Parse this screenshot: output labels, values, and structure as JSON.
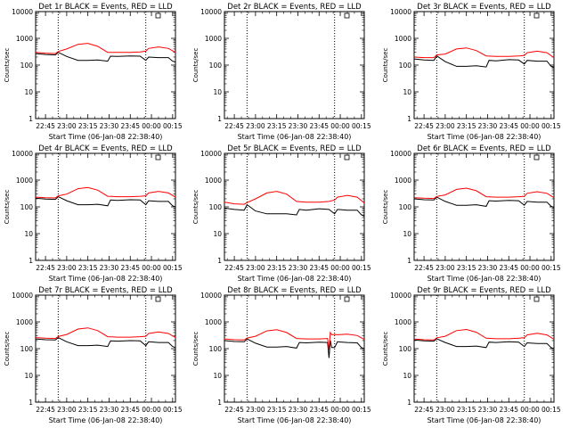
{
  "chart_data": [
    {
      "type": "line",
      "title": "Det 1r BLACK = Events, RED = LLD",
      "xlabel": "Start Time (06-Jan-08 22:38:40)",
      "ylabel": "Counts/sec",
      "yscale": "log",
      "ylim": [
        1,
        10000
      ],
      "xlim": [
        "22:38",
        "00:17"
      ],
      "x_ticks": [
        "22:45",
        "23:00",
        "23:15",
        "23:30",
        "23:45",
        "00:00",
        "00:15"
      ],
      "y_ticks": [
        "1",
        "10",
        "100",
        "1000",
        "10000"
      ],
      "vlines": [
        "22:54",
        "23:56"
      ],
      "legend": "top-right",
      "series": [
        {
          "name": "Events",
          "color": "#000000",
          "style": "stepped",
          "x": [
            "22:38",
            "22:45",
            "22:52",
            "22:54",
            "23:00",
            "23:08",
            "23:15",
            "23:22",
            "23:29",
            "23:31",
            "23:36",
            "23:45",
            "23:52",
            "23:56",
            "23:58",
            "00:05",
            "00:12",
            "00:15",
            "00:17"
          ],
          "y": [
            270,
            250,
            240,
            300,
            210,
            150,
            150,
            155,
            140,
            215,
            210,
            220,
            215,
            150,
            200,
            190,
            190,
            140,
            130
          ]
        },
        {
          "name": "LLD",
          "color": "#ff0000",
          "x": [
            "22:38",
            "22:45",
            "22:52",
            "22:54",
            "23:00",
            "23:08",
            "23:15",
            "23:22",
            "23:29",
            "23:36",
            "23:45",
            "23:52",
            "23:56",
            "23:58",
            "00:05",
            "00:12",
            "00:17"
          ],
          "y": [
            300,
            280,
            270,
            320,
            400,
            600,
            650,
            500,
            300,
            300,
            300,
            310,
            330,
            420,
            480,
            420,
            300
          ]
        }
      ]
    },
    {
      "type": "line",
      "title": "Det 2r BLACK = Events, RED = LLD",
      "xlabel": "Start Time (06-Jan-08 22:38:40)",
      "ylabel": "Counts/sec",
      "yscale": "log",
      "ylim": [
        1,
        10000
      ],
      "xlim": [
        "22:38",
        "00:17"
      ],
      "x_ticks": [
        "22:45",
        "23:00",
        "23:15",
        "23:30",
        "23:45",
        "00:00",
        "00:15"
      ],
      "y_ticks": [
        "1",
        "10",
        "100",
        "1000",
        "10000"
      ],
      "vlines": [
        "22:54",
        "23:56"
      ],
      "legend": "top-right",
      "series": [
        {
          "name": "Events",
          "color": "#000000",
          "x": [],
          "y": []
        },
        {
          "name": "LLD",
          "color": "#ff0000",
          "x": [],
          "y": []
        }
      ]
    },
    {
      "type": "line",
      "title": "Det 3r BLACK = Events, RED = LLD",
      "xlabel": "Start Time (06-Jan-08 22:38:40)",
      "ylabel": "Counts/sec",
      "yscale": "log",
      "ylim": [
        1,
        10000
      ],
      "xlim": [
        "22:38",
        "00:17"
      ],
      "x_ticks": [
        "22:45",
        "23:00",
        "23:15",
        "23:30",
        "23:45",
        "00:00",
        "00:15"
      ],
      "y_ticks": [
        "1",
        "10",
        "100",
        "1000",
        "10000"
      ],
      "vlines": [
        "22:54",
        "23:56"
      ],
      "legend": "top-right",
      "series": [
        {
          "name": "Events",
          "color": "#000000",
          "style": "stepped",
          "x": [
            "22:38",
            "22:45",
            "22:52",
            "22:54",
            "23:00",
            "23:08",
            "23:15",
            "23:22",
            "23:29",
            "23:31",
            "23:36",
            "23:45",
            "23:52",
            "23:56",
            "23:58",
            "00:05",
            "00:12",
            "00:15",
            "00:17"
          ],
          "y": [
            170,
            155,
            150,
            220,
            135,
            90,
            90,
            95,
            85,
            150,
            145,
            160,
            155,
            110,
            150,
            140,
            140,
            90,
            80
          ]
        },
        {
          "name": "LLD",
          "color": "#ff0000",
          "x": [
            "22:38",
            "22:45",
            "22:52",
            "22:54",
            "23:00",
            "23:08",
            "23:15",
            "23:22",
            "23:29",
            "23:36",
            "23:45",
            "23:52",
            "23:56",
            "23:58",
            "00:05",
            "00:12",
            "00:17"
          ],
          "y": [
            200,
            190,
            190,
            240,
            260,
            400,
            440,
            350,
            220,
            210,
            210,
            220,
            230,
            290,
            330,
            290,
            190
          ]
        }
      ]
    },
    {
      "type": "line",
      "title": "Det 4r BLACK = Events, RED = LLD",
      "xlabel": "Start Time (06-Jan-08 22:38:40)",
      "ylabel": "Counts/sec",
      "yscale": "log",
      "ylim": [
        1,
        10000
      ],
      "xlim": [
        "22:38",
        "00:17"
      ],
      "x_ticks": [
        "22:45",
        "23:00",
        "23:15",
        "23:30",
        "23:45",
        "00:00",
        "00:15"
      ],
      "y_ticks": [
        "1",
        "10",
        "100",
        "1000",
        "10000"
      ],
      "vlines": [
        "22:54",
        "23:56"
      ],
      "legend": "top-right",
      "series": [
        {
          "name": "Events",
          "color": "#000000",
          "style": "stepped",
          "x": [
            "22:38",
            "22:45",
            "22:52",
            "22:54",
            "23:00",
            "23:08",
            "23:15",
            "23:22",
            "23:29",
            "23:31",
            "23:36",
            "23:45",
            "23:52",
            "23:56",
            "23:58",
            "00:05",
            "00:12",
            "00:15",
            "00:17"
          ],
          "y": [
            210,
            195,
            190,
            240,
            170,
            120,
            120,
            125,
            110,
            180,
            175,
            185,
            180,
            120,
            170,
            160,
            160,
            110,
            100
          ]
        },
        {
          "name": "LLD",
          "color": "#ff0000",
          "x": [
            "22:38",
            "22:45",
            "22:52",
            "22:54",
            "23:00",
            "23:08",
            "23:15",
            "23:22",
            "23:29",
            "23:36",
            "23:45",
            "23:52",
            "23:56",
            "23:58",
            "00:05",
            "00:12",
            "00:17"
          ],
          "y": [
            230,
            220,
            215,
            260,
            300,
            480,
            530,
            420,
            250,
            240,
            240,
            250,
            260,
            330,
            380,
            330,
            230
          ]
        }
      ]
    },
    {
      "type": "line",
      "title": "Det 5r BLACK = Events, RED = LLD",
      "xlabel": "Start Time (06-Jan-08 22:38:40)",
      "ylabel": "Counts/sec",
      "yscale": "log",
      "ylim": [
        1,
        10000
      ],
      "xlim": [
        "22:38",
        "00:17"
      ],
      "x_ticks": [
        "22:45",
        "23:00",
        "23:15",
        "23:30",
        "23:45",
        "00:00",
        "00:15"
      ],
      "y_ticks": [
        "1",
        "10",
        "100",
        "1000",
        "10000"
      ],
      "vlines": [
        "22:54",
        "23:56"
      ],
      "legend": "top-right",
      "series": [
        {
          "name": "Events",
          "color": "#000000",
          "style": "stepped",
          "x": [
            "22:38",
            "22:45",
            "22:52",
            "22:54",
            "23:00",
            "23:08",
            "23:15",
            "23:22",
            "23:29",
            "23:31",
            "23:36",
            "23:45",
            "23:52",
            "23:56",
            "23:58",
            "00:05",
            "00:12",
            "00:15",
            "00:17"
          ],
          "y": [
            90,
            80,
            75,
            120,
            70,
            55,
            55,
            55,
            50,
            80,
            75,
            85,
            80,
            55,
            80,
            75,
            75,
            50,
            45
          ]
        },
        {
          "name": "LLD",
          "color": "#ff0000",
          "x": [
            "22:38",
            "22:45",
            "22:52",
            "22:54",
            "23:00",
            "23:08",
            "23:15",
            "23:22",
            "23:29",
            "23:36",
            "23:45",
            "23:52",
            "23:56",
            "23:58",
            "00:05",
            "00:12",
            "00:17"
          ],
          "y": [
            150,
            130,
            125,
            145,
            200,
            330,
            380,
            300,
            160,
            150,
            150,
            160,
            180,
            230,
            270,
            230,
            140
          ]
        }
      ]
    },
    {
      "type": "line",
      "title": "Det 6r BLACK = Events, RED = LLD",
      "xlabel": "Start Time (06-Jan-08 22:38:40)",
      "ylabel": "Counts/sec",
      "yscale": "log",
      "ylim": [
        1,
        10000
      ],
      "xlim": [
        "22:38",
        "00:17"
      ],
      "x_ticks": [
        "22:45",
        "23:00",
        "23:15",
        "23:30",
        "23:45",
        "00:00",
        "00:15"
      ],
      "y_ticks": [
        "1",
        "10",
        "100",
        "1000",
        "10000"
      ],
      "vlines": [
        "22:54",
        "23:56"
      ],
      "legend": "top-right",
      "series": [
        {
          "name": "Events",
          "color": "#000000",
          "style": "stepped",
          "x": [
            "22:38",
            "22:45",
            "22:52",
            "22:54",
            "23:00",
            "23:08",
            "23:15",
            "23:22",
            "23:29",
            "23:31",
            "23:36",
            "23:45",
            "23:52",
            "23:56",
            "23:58",
            "00:05",
            "00:12",
            "00:15",
            "00:17"
          ],
          "y": [
            200,
            185,
            180,
            230,
            160,
            115,
            115,
            120,
            105,
            170,
            165,
            175,
            170,
            115,
            160,
            150,
            150,
            105,
            95
          ]
        },
        {
          "name": "LLD",
          "color": "#ff0000",
          "x": [
            "22:38",
            "22:45",
            "22:52",
            "22:54",
            "23:00",
            "23:08",
            "23:15",
            "23:22",
            "23:29",
            "23:36",
            "23:45",
            "23:52",
            "23:56",
            "23:58",
            "00:05",
            "00:12",
            "00:17"
          ],
          "y": [
            220,
            210,
            205,
            245,
            280,
            450,
            500,
            400,
            240,
            230,
            230,
            240,
            250,
            320,
            370,
            320,
            220
          ]
        }
      ]
    },
    {
      "type": "line",
      "title": "Det 7r BLACK = Events, RED = LLD",
      "xlabel": "Start Time (06-Jan-08 22:38:40)",
      "ylabel": "Counts/sec",
      "yscale": "log",
      "ylim": [
        1,
        10000
      ],
      "xlim": [
        "22:38",
        "00:17"
      ],
      "x_ticks": [
        "22:45",
        "23:00",
        "23:15",
        "23:30",
        "23:45",
        "00:00",
        "00:15"
      ],
      "y_ticks": [
        "1",
        "10",
        "100",
        "1000",
        "10000"
      ],
      "vlines": [
        "22:54",
        "23:56"
      ],
      "legend": "top-right",
      "series": [
        {
          "name": "Events",
          "color": "#000000",
          "style": "stepped",
          "x": [
            "22:38",
            "22:45",
            "22:52",
            "22:54",
            "23:00",
            "23:08",
            "23:15",
            "23:22",
            "23:29",
            "23:31",
            "23:36",
            "23:45",
            "23:52",
            "23:56",
            "23:58",
            "00:05",
            "00:12",
            "00:15",
            "00:17"
          ],
          "y": [
            230,
            215,
            210,
            260,
            180,
            130,
            130,
            135,
            120,
            195,
            190,
            200,
            195,
            130,
            180,
            170,
            170,
            120,
            110
          ]
        },
        {
          "name": "LLD",
          "color": "#ff0000",
          "x": [
            "22:38",
            "22:45",
            "22:52",
            "22:54",
            "23:00",
            "23:08",
            "23:15",
            "23:22",
            "23:29",
            "23:36",
            "23:45",
            "23:52",
            "23:56",
            "23:58",
            "00:05",
            "00:12",
            "00:17"
          ],
          "y": [
            260,
            245,
            240,
            285,
            340,
            540,
            600,
            470,
            280,
            270,
            270,
            280,
            290,
            370,
            420,
            370,
            260
          ]
        }
      ]
    },
    {
      "type": "line",
      "title": "Det 8r BLACK = Events, RED = LLD",
      "xlabel": "Start Time (06-Jan-08 22:38:40)",
      "ylabel": "Counts/sec",
      "yscale": "log",
      "ylim": [
        1,
        10000
      ],
      "xlim": [
        "22:38",
        "00:17"
      ],
      "x_ticks": [
        "22:45",
        "23:00",
        "23:15",
        "23:30",
        "23:45",
        "00:00",
        "00:15"
      ],
      "y_ticks": [
        "1",
        "10",
        "100",
        "1000",
        "10000"
      ],
      "vlines": [
        "22:54",
        "23:56"
      ],
      "legend": "top-right",
      "series": [
        {
          "name": "Events",
          "color": "#000000",
          "style": "stepped",
          "x": [
            "22:38",
            "22:45",
            "22:52",
            "22:54",
            "23:00",
            "23:08",
            "23:15",
            "23:22",
            "23:29",
            "23:31",
            "23:36",
            "23:45",
            "23:51",
            "23:52",
            "23:53",
            "23:54",
            "23:56",
            "23:58",
            "00:05",
            "00:12",
            "00:15",
            "00:17"
          ],
          "y": [
            200,
            185,
            180,
            230,
            160,
            115,
            115,
            120,
            105,
            170,
            165,
            175,
            170,
            45,
            200,
            110,
            110,
            180,
            170,
            165,
            110,
            100
          ]
        },
        {
          "name": "LLD",
          "color": "#ff0000",
          "x": [
            "22:38",
            "22:45",
            "22:52",
            "22:54",
            "23:00",
            "23:08",
            "23:15",
            "23:22",
            "23:29",
            "23:36",
            "23:45",
            "23:51",
            "23:52",
            "23:53",
            "23:54",
            "23:56",
            "23:58",
            "00:05",
            "00:12",
            "00:17"
          ],
          "y": [
            230,
            215,
            210,
            250,
            290,
            460,
            510,
            400,
            240,
            230,
            230,
            240,
            90,
            400,
            330,
            340,
            330,
            350,
            310,
            220
          ]
        }
      ]
    },
    {
      "type": "line",
      "title": "Det 9r BLACK = Events, RED = LLD",
      "xlabel": "Start Time (06-Jan-08 22:38:40)",
      "ylabel": "Counts/sec",
      "yscale": "log",
      "ylim": [
        1,
        10000
      ],
      "xlim": [
        "22:38",
        "00:17"
      ],
      "x_ticks": [
        "22:45",
        "23:00",
        "23:15",
        "23:30",
        "23:45",
        "00:00",
        "00:15"
      ],
      "y_ticks": [
        "1",
        "10",
        "100",
        "1000",
        "10000"
      ],
      "vlines": [
        "22:54",
        "23:56"
      ],
      "legend": "top-right",
      "series": [
        {
          "name": "Events",
          "color": "#000000",
          "style": "stepped",
          "x": [
            "22:38",
            "22:45",
            "22:52",
            "22:54",
            "23:00",
            "23:08",
            "23:15",
            "23:22",
            "23:29",
            "23:31",
            "23:36",
            "23:45",
            "23:52",
            "23:56",
            "23:58",
            "00:05",
            "00:12",
            "00:15",
            "00:17"
          ],
          "y": [
            210,
            195,
            190,
            235,
            170,
            120,
            120,
            125,
            110,
            175,
            170,
            180,
            175,
            120,
            165,
            155,
            155,
            110,
            100
          ]
        },
        {
          "name": "LLD",
          "color": "#ff0000",
          "x": [
            "22:38",
            "22:45",
            "22:52",
            "22:54",
            "23:00",
            "23:08",
            "23:15",
            "23:22",
            "23:29",
            "23:36",
            "23:45",
            "23:52",
            "23:56",
            "23:58",
            "00:05",
            "00:12",
            "00:17"
          ],
          "y": [
            230,
            215,
            210,
            255,
            290,
            470,
            520,
            410,
            245,
            235,
            235,
            245,
            255,
            325,
            375,
            325,
            225
          ]
        }
      ]
    }
  ]
}
